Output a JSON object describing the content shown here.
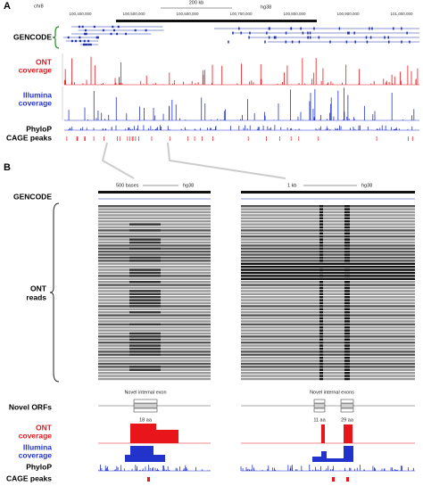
{
  "panel_a": {
    "label": "A",
    "chrom": "chr8",
    "scale": "200 kb",
    "assembly": "hg38",
    "coordinates": [
      "100,400,000",
      "100,500,000",
      "100,600,000",
      "100,700,000",
      "100,800,000",
      "100,900,000",
      "101,000,000"
    ],
    "gencode": "GENCODE",
    "ont": [
      "ONT",
      "coverage"
    ],
    "illumina": [
      "Illumina",
      "coverage"
    ],
    "phylop": "PhyloP",
    "cage": "CAGE peaks"
  },
  "panel_b": {
    "label": "B",
    "left": {
      "scale": "500 bases",
      "assembly": "hg38",
      "exon_label": "Novel internal exon",
      "orfs": [
        "18 aa"
      ]
    },
    "right": {
      "scale": "1 kb",
      "assembly": "hg38",
      "exon_label": "Novel internal exons",
      "orfs": [
        "11 aa",
        "29 aa"
      ]
    },
    "gencode": "GENCODE",
    "reads": [
      "ONT",
      "reads"
    ],
    "orfs": "Novel ORFs",
    "ont": [
      "ONT",
      "coverage"
    ],
    "illumina": [
      "Illumina",
      "coverage"
    ],
    "phylop": "PhyloP",
    "cage": "CAGE peaks"
  }
}
